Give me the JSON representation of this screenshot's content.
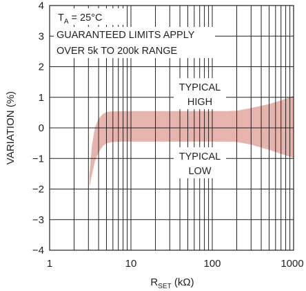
{
  "chart_data": {
    "type": "area",
    "xscale": "log",
    "xlim": [
      1,
      1000
    ],
    "ylim": [
      -4,
      4
    ],
    "grid": true,
    "xlabel": "R",
    "xlabel_sub": "SET",
    "xlabel_unit": " (kΩ)",
    "ylabel": "VARIATION (%)",
    "x_tick_labels": [
      "1",
      "10",
      "100",
      "1000"
    ],
    "x_tick_values": [
      1,
      10,
      100,
      1000
    ],
    "y_tick_labels": [
      "−4",
      "−3",
      "−2",
      "−1",
      "0",
      "1",
      "2",
      "3",
      "4"
    ],
    "y_tick_values": [
      -4,
      -3,
      -2,
      -1,
      0,
      1,
      2,
      3,
      4
    ],
    "band_color": "#e6b3ad",
    "band": {
      "x": [
        3.1,
        3.3,
        3.6,
        4,
        4.5,
        5,
        6,
        8,
        10,
        20,
        50,
        100,
        150,
        200,
        300,
        500,
        700,
        1000
      ],
      "high": [
        -1.5,
        -0.6,
        0.0,
        0.3,
        0.45,
        0.52,
        0.54,
        0.55,
        0.55,
        0.55,
        0.55,
        0.55,
        0.55,
        0.56,
        0.65,
        0.78,
        0.9,
        1.05
      ],
      "low": [
        -1.9,
        -1.55,
        -1.1,
        -0.8,
        -0.6,
        -0.5,
        -0.46,
        -0.45,
        -0.45,
        -0.45,
        -0.45,
        -0.45,
        -0.45,
        -0.46,
        -0.55,
        -0.72,
        -0.85,
        -0.98
      ]
    },
    "annotations": {
      "temp_T": "T",
      "temp_sub": "A",
      "temp_rest": " = 25°C",
      "limits_line1": "GUARANTEED LIMITS APPLY",
      "limits_line2": "OVER 5k TO 200k RANGE",
      "typical_high_1": "TYPICAL",
      "typical_high_2": "HIGH",
      "typical_low_1": "TYPICAL",
      "typical_low_2": "LOW"
    }
  }
}
